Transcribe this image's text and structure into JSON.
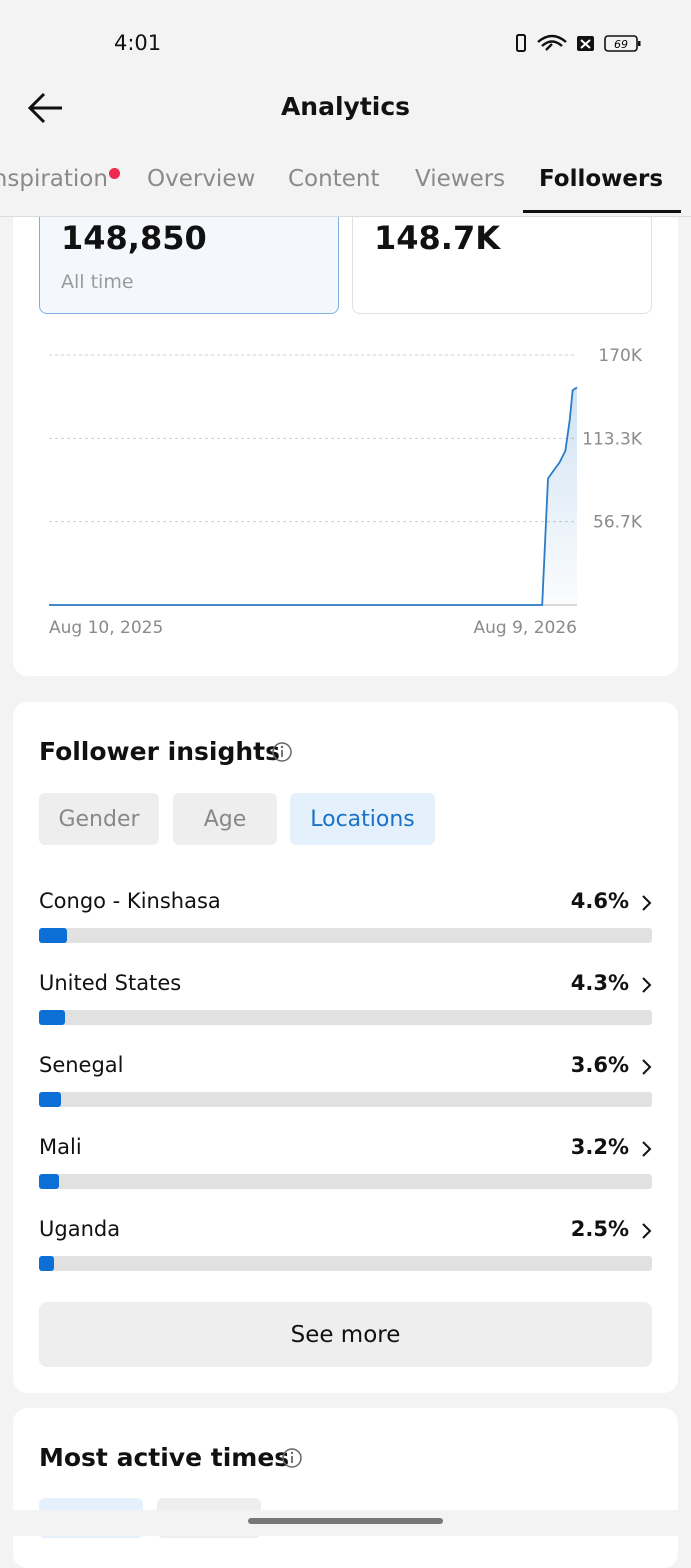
{
  "status_bar": {
    "time": "4:01",
    "battery": "69"
  },
  "header": {
    "title": "Analytics"
  },
  "tabs": [
    "Inspiration",
    "Overview",
    "Content",
    "Viewers",
    "Followers"
  ],
  "active_tab": 4,
  "stats": [
    {
      "value": "148,850",
      "caption": "All time"
    },
    {
      "value": "148.7K"
    }
  ],
  "chart_data": {
    "type": "line",
    "x": [
      "2025-08-10",
      "2026-07-16",
      "2026-07-20",
      "2026-07-25",
      "2026-07-28",
      "2026-08-01",
      "2026-08-04",
      "2026-08-06",
      "2026-08-09"
    ],
    "values": [
      0,
      0,
      86000,
      93000,
      97000,
      105000,
      126000,
      146000,
      148000
    ],
    "color": "#2a7cc7",
    "xlim": [
      "2025-08-10",
      "2026-08-09"
    ],
    "xticks": [
      {
        "value": "2025-08-10",
        "label": "Aug 10, 2025"
      },
      {
        "value": "2026-08-09",
        "label": "Aug 9, 2026"
      }
    ],
    "ylim": [
      0,
      170000
    ],
    "yticks": [
      {
        "value": 56700,
        "label": "56.7K"
      },
      {
        "value": 113300,
        "label": "113.3K"
      },
      {
        "value": 170000,
        "label": "170K"
      }
    ],
    "grid": true
  },
  "insights": {
    "title": "Follower insights",
    "filters": [
      "Gender",
      "Age",
      "Locations"
    ],
    "active_filter": 2,
    "locations": {
      "categories": [
        "Congo - Kinshasa",
        "United States",
        "Senegal",
        "Mali",
        "Uganda"
      ],
      "values": [
        4.6,
        4.3,
        3.6,
        3.2,
        2.5
      ],
      "value_labels": [
        "4.6%",
        "4.3%",
        "3.6%",
        "3.2%",
        "2.5%"
      ],
      "xlim": [
        0,
        100
      ],
      "color": "#0b6fd6"
    },
    "button": "See more"
  },
  "active_times": {
    "title": "Most active times"
  }
}
